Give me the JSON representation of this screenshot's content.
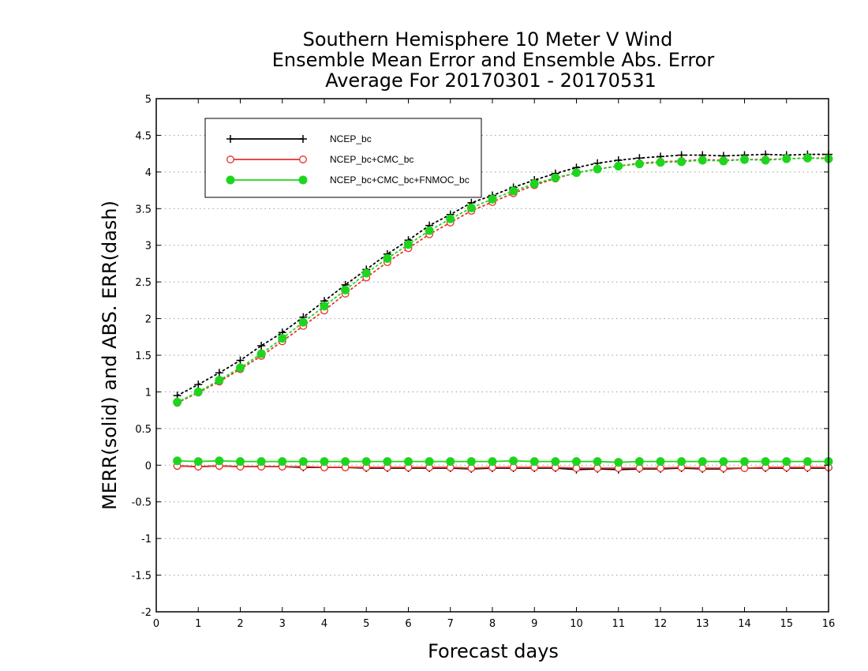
{
  "chart_data": {
    "type": "line",
    "title_lines": [
      "Southern Hemisphere 10 Meter V Wind",
      "Ensemble Mean Error and Ensemble Abs. Error",
      "Average For 20170301 - 20170531"
    ],
    "xlabel": "Forecast days",
    "ylabel": "MERR(solid) and ABS. ERR(dash)",
    "xlim": [
      0,
      16
    ],
    "ylim": [
      -2,
      5
    ],
    "xticks": [
      "0",
      "1",
      "2",
      "3",
      "4",
      "5",
      "6",
      "7",
      "8",
      "9",
      "10",
      "11",
      "12",
      "13",
      "14",
      "15",
      "16"
    ],
    "yticks": [
      "-2",
      "-1.5",
      "-1",
      "-0.5",
      "0",
      "0.5",
      "1",
      "1.5",
      "2",
      "2.5",
      "3",
      "3.5",
      "4",
      "4.5",
      "5"
    ],
    "grid": "horizontal-dotted",
    "legend_position": "top-left",
    "x": [
      0.5,
      1,
      1.5,
      2,
      2.5,
      3,
      3.5,
      4,
      4.5,
      5,
      5.5,
      6,
      6.5,
      7,
      7.5,
      8,
      8.5,
      9,
      9.5,
      10,
      10.5,
      11,
      11.5,
      12,
      12.5,
      13,
      13.5,
      14,
      14.5,
      15,
      15.5,
      16
    ],
    "series": [
      {
        "name": "NCEP_bc",
        "color": "#000000",
        "marker": "plus",
        "merr": [
          -0.01,
          -0.02,
          -0.01,
          -0.02,
          -0.02,
          -0.02,
          -0.03,
          -0.03,
          -0.03,
          -0.04,
          -0.04,
          -0.04,
          -0.04,
          -0.04,
          -0.05,
          -0.04,
          -0.04,
          -0.04,
          -0.04,
          -0.06,
          -0.05,
          -0.06,
          -0.05,
          -0.05,
          -0.04,
          -0.05,
          -0.05,
          -0.04,
          -0.04,
          -0.04,
          -0.04,
          -0.04
        ],
        "abs_err": [
          0.95,
          1.1,
          1.26,
          1.43,
          1.63,
          1.81,
          2.02,
          2.24,
          2.46,
          2.67,
          2.88,
          3.07,
          3.27,
          3.42,
          3.58,
          3.68,
          3.79,
          3.89,
          3.98,
          4.06,
          4.12,
          4.16,
          4.19,
          4.21,
          4.23,
          4.23,
          4.22,
          4.23,
          4.24,
          4.23,
          4.24,
          4.24
        ]
      },
      {
        "name": "NCEP_bc+CMC_bc",
        "color": "#e8302c",
        "marker": "open-circle",
        "merr": [
          -0.01,
          -0.02,
          -0.01,
          -0.02,
          -0.02,
          -0.02,
          -0.02,
          -0.03,
          -0.03,
          -0.03,
          -0.03,
          -0.03,
          -0.03,
          -0.03,
          -0.04,
          -0.03,
          -0.03,
          -0.03,
          -0.03,
          -0.04,
          -0.04,
          -0.04,
          -0.04,
          -0.04,
          -0.03,
          -0.04,
          -0.04,
          -0.04,
          -0.03,
          -0.03,
          -0.03,
          -0.03
        ],
        "abs_err": [
          0.85,
          0.99,
          1.14,
          1.31,
          1.49,
          1.69,
          1.9,
          2.11,
          2.34,
          2.56,
          2.77,
          2.96,
          3.15,
          3.31,
          3.47,
          3.59,
          3.71,
          3.82,
          3.91,
          3.99,
          4.04,
          4.08,
          4.12,
          4.14,
          4.15,
          4.17,
          4.16,
          4.17,
          4.17,
          4.18,
          4.19,
          4.19
        ]
      },
      {
        "name": "NCEP_bc+CMC_bc+FNMOC_bc",
        "color": "#1ed51e",
        "marker": "filled-circle",
        "merr": [
          0.06,
          0.05,
          0.06,
          0.05,
          0.05,
          0.05,
          0.05,
          0.05,
          0.05,
          0.05,
          0.05,
          0.05,
          0.05,
          0.05,
          0.05,
          0.05,
          0.06,
          0.05,
          0.05,
          0.05,
          0.05,
          0.04,
          0.05,
          0.05,
          0.05,
          0.05,
          0.05,
          0.05,
          0.05,
          0.05,
          0.05,
          0.05
        ],
        "abs_err": [
          0.86,
          1.0,
          1.16,
          1.33,
          1.52,
          1.73,
          1.95,
          2.17,
          2.39,
          2.62,
          2.82,
          3.01,
          3.2,
          3.36,
          3.51,
          3.63,
          3.74,
          3.84,
          3.92,
          3.99,
          4.04,
          4.08,
          4.11,
          4.13,
          4.14,
          4.16,
          4.15,
          4.17,
          4.16,
          4.18,
          4.19,
          4.18
        ]
      }
    ]
  }
}
